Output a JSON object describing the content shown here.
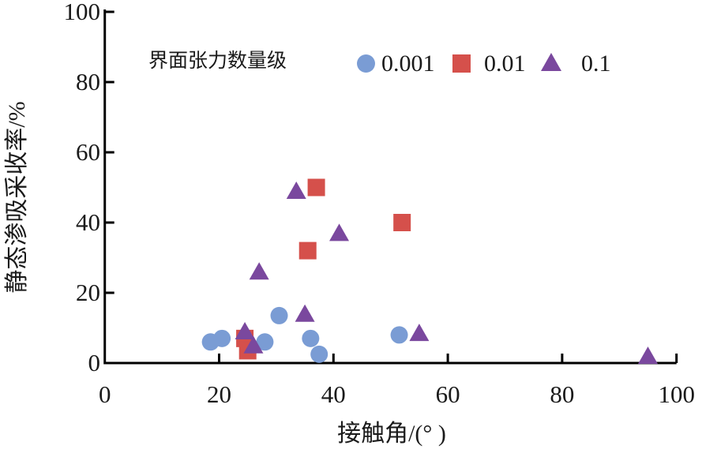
{
  "chart_data": {
    "type": "scatter",
    "title": "",
    "xlabel": "接触角/(°  )",
    "ylabel": "静态渗吸采收率/%",
    "xlim": [
      0,
      100
    ],
    "ylim": [
      0,
      100
    ],
    "x_ticks": [
      0,
      20,
      40,
      60,
      80,
      100
    ],
    "y_ticks": [
      0,
      20,
      40,
      60,
      80,
      100
    ],
    "grid": false,
    "legend_position": "top-inside",
    "legend_title": "界面张力数量级",
    "axis_color": "#000000",
    "background_color": "#ffffff",
    "series": [
      {
        "name": "0.001",
        "marker": "circle",
        "color": "#7a9cd4",
        "points": [
          [
            18.5,
            6
          ],
          [
            20.5,
            7
          ],
          [
            28,
            6
          ],
          [
            30.5,
            13.5
          ],
          [
            36,
            7
          ],
          [
            37.5,
            2.5
          ],
          [
            51.5,
            8
          ]
        ]
      },
      {
        "name": "0.01",
        "marker": "square",
        "color": "#d5504b",
        "points": [
          [
            24.5,
            7
          ],
          [
            25,
            3.5
          ],
          [
            35.5,
            32
          ],
          [
            37,
            50
          ],
          [
            52,
            40
          ]
        ]
      },
      {
        "name": "0.1",
        "marker": "triangle",
        "color": "#7a489e",
        "points": [
          [
            24.5,
            9
          ],
          [
            26,
            5
          ],
          [
            27,
            26
          ],
          [
            33.5,
            49
          ],
          [
            35,
            14
          ],
          [
            41,
            37
          ],
          [
            55,
            8.5
          ],
          [
            95,
            2
          ]
        ]
      }
    ]
  }
}
